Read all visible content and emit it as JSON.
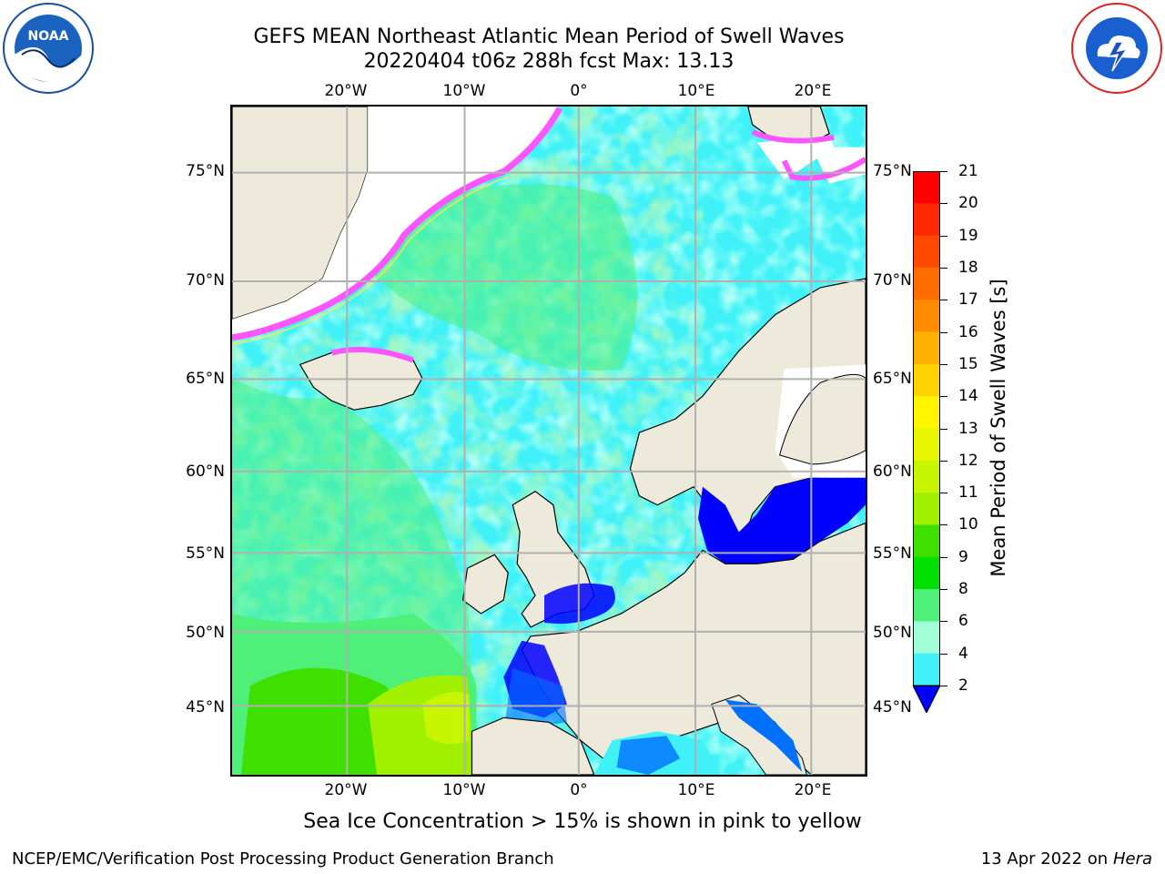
{
  "title_line1": "GEFS MEAN Northeast Atlantic Mean Period of Swell Waves",
  "title_line2": "20220404 t06z 288h fcst   Max: 13.13",
  "logos": {
    "left": "noaa-logo",
    "right": "national-weather-service-logo"
  },
  "map": {
    "lon_labels": [
      "20°W",
      "10°W",
      "0°",
      "10°E",
      "20°E"
    ],
    "lat_labels": [
      "75°N",
      "70°N",
      "65°N",
      "60°N",
      "55°N",
      "50°N",
      "45°N"
    ],
    "colors": {
      "land": "#eeeadb",
      "gridline": "#b0b0b0",
      "ice_pink": "#ff55ff",
      "ice_yellow": "#ffee44"
    }
  },
  "colorbar": {
    "title": "Mean Period of Swell Waves [s]",
    "labels": [
      "21",
      "20",
      "19",
      "18",
      "17",
      "16",
      "15",
      "14",
      "13",
      "12",
      "11",
      "10",
      "9",
      "8",
      "6",
      "4",
      "2"
    ],
    "colors": [
      "#ff0000",
      "#ff2800",
      "#ff4a00",
      "#ff6c00",
      "#ff8c00",
      "#ffb000",
      "#ffd200",
      "#fff500",
      "#e8f500",
      "#c8f500",
      "#a0f000",
      "#3fe000",
      "#00e000",
      "#4ef07a",
      "#a0ffd8",
      "#40f2f8",
      "#00e6ff",
      "#0070ff"
    ],
    "extend_color": "#0000ff"
  },
  "footnote": "Sea Ice Concentration > 15% is shown in pink to yellow",
  "footer_left": "NCEP/EMC/Verification Post Processing Product Generation Branch",
  "footer_right_prefix": "13 Apr 2022 on ",
  "footer_right_host": "Hera"
}
